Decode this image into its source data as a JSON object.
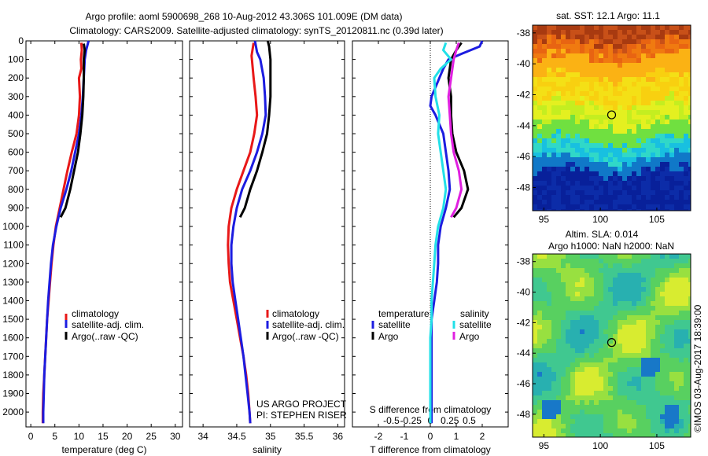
{
  "header": {
    "line1": "Argo profile: aoml 5900698_268 10-Aug-2012 43.306S 101.009E (DM data)",
    "line2": "Climatology: CARS2009. Satellite-adjusted climatology: synTS_20120811.nc (0.39d later)"
  },
  "sst": {
    "title": "sat. SST: 12.1 Argo: 11.1"
  },
  "sla": {
    "title1": "Altim. SLA: 0.014",
    "title2": "Argo h1000: NaN h2000: NaN"
  },
  "side_note": "©IMOS 03-Aug-2017 18:39:00",
  "project_note": {
    "line1": "US ARGO PROJECT",
    "line2": "PI: STEPHEN RISER"
  },
  "colors": {
    "climatology": "#e81818",
    "satellite": "#1c1ce0",
    "argo": "#000000",
    "sal_satellite": "#22e0e8",
    "sal_argo": "#e020e0"
  },
  "chart_data": [
    {
      "type": "line",
      "xlabel": "temperature (deg C)",
      "ylabel": "",
      "xlim": [
        -1,
        31.5
      ],
      "ylim": [
        2080,
        0
      ],
      "xticks": [
        0,
        5,
        10,
        15,
        20,
        25,
        30
      ],
      "yticks": [
        0,
        100,
        200,
        300,
        400,
        500,
        600,
        700,
        800,
        900,
        1000,
        1100,
        1200,
        1300,
        1400,
        1500,
        1600,
        1700,
        1800,
        1900,
        2000
      ],
      "legend": [
        "climatology",
        "satellite-adj. clim.",
        "Argo(..raw -QC)"
      ],
      "series": [
        {
          "name": "climatology",
          "color": "#e81818",
          "points": [
            [
              10.5,
              10
            ],
            [
              10.6,
              50
            ],
            [
              10.4,
              100
            ],
            [
              10.5,
              150
            ],
            [
              10.0,
              200
            ],
            [
              10.2,
              300
            ],
            [
              10.0,
              400
            ],
            [
              9.5,
              500
            ],
            [
              8.5,
              600
            ],
            [
              7.6,
              700
            ],
            [
              6.8,
              800
            ],
            [
              6.0,
              900
            ],
            [
              5.2,
              1000
            ],
            [
              4.7,
              1100
            ],
            [
              4.3,
              1200
            ],
            [
              4.0,
              1300
            ],
            [
              3.7,
              1400
            ],
            [
              3.4,
              1500
            ],
            [
              3.2,
              1600
            ],
            [
              3.0,
              1700
            ],
            [
              2.8,
              1800
            ],
            [
              2.6,
              1900
            ],
            [
              2.5,
              2000
            ],
            [
              2.5,
              2060
            ]
          ]
        },
        {
          "name": "satellite-adj. clim.",
          "color": "#1c1ce0",
          "points": [
            [
              12.0,
              0
            ],
            [
              11.5,
              50
            ],
            [
              11.2,
              100
            ],
            [
              11.1,
              150
            ],
            [
              11.0,
              200
            ],
            [
              10.8,
              300
            ],
            [
              10.5,
              400
            ],
            [
              10.0,
              500
            ],
            [
              9.2,
              600
            ],
            [
              8.4,
              700
            ],
            [
              7.4,
              800
            ],
            [
              6.2,
              900
            ],
            [
              5.3,
              1000
            ],
            [
              4.6,
              1100
            ],
            [
              4.2,
              1200
            ],
            [
              3.9,
              1300
            ],
            [
              3.6,
              1400
            ],
            [
              3.4,
              1500
            ],
            [
              3.2,
              1600
            ],
            [
              3.0,
              1700
            ],
            [
              2.8,
              1800
            ],
            [
              2.7,
              1900
            ],
            [
              2.6,
              2000
            ],
            [
              2.6,
              2060
            ]
          ]
        },
        {
          "name": "Argo(..raw -QC)",
          "color": "#000000",
          "points": [
            [
              11.0,
              15
            ],
            [
              11.2,
              50
            ],
            [
              11.0,
              100
            ],
            [
              11.0,
              200
            ],
            [
              10.9,
              300
            ],
            [
              10.7,
              400
            ],
            [
              10.3,
              500
            ],
            [
              9.8,
              600
            ],
            [
              9.0,
              700
            ],
            [
              8.2,
              800
            ],
            [
              7.2,
              900
            ],
            [
              6.2,
              950
            ]
          ]
        }
      ]
    },
    {
      "type": "line",
      "xlabel": "salinity",
      "ylabel": "",
      "xlim": [
        33.8,
        36.1
      ],
      "ylim": [
        2080,
        0
      ],
      "xticks": [
        34,
        34.5,
        35,
        35.5,
        36
      ],
      "legend": [
        "climatology",
        "satellite-adj. clim.",
        "Argo(..raw -QC)"
      ],
      "series": [
        {
          "name": "climatology",
          "color": "#e81818",
          "points": [
            [
              34.75,
              10
            ],
            [
              34.72,
              80
            ],
            [
              34.75,
              200
            ],
            [
              34.78,
              300
            ],
            [
              34.8,
              400
            ],
            [
              34.76,
              500
            ],
            [
              34.7,
              600
            ],
            [
              34.6,
              700
            ],
            [
              34.5,
              800
            ],
            [
              34.42,
              900
            ],
            [
              34.38,
              1000
            ],
            [
              34.37,
              1100
            ],
            [
              34.38,
              1200
            ],
            [
              34.4,
              1300
            ],
            [
              34.45,
              1400
            ],
            [
              34.5,
              1500
            ],
            [
              34.55,
              1600
            ],
            [
              34.6,
              1700
            ],
            [
              34.64,
              1800
            ],
            [
              34.67,
              1900
            ],
            [
              34.69,
              2000
            ],
            [
              34.7,
              2060
            ]
          ]
        },
        {
          "name": "satellite-adj. clim.",
          "color": "#1c1ce0",
          "points": [
            [
              34.77,
              0
            ],
            [
              34.8,
              60
            ],
            [
              34.85,
              100
            ],
            [
              34.9,
              200
            ],
            [
              34.92,
              300
            ],
            [
              34.93,
              400
            ],
            [
              34.88,
              500
            ],
            [
              34.8,
              600
            ],
            [
              34.7,
              700
            ],
            [
              34.58,
              800
            ],
            [
              34.5,
              900
            ],
            [
              34.45,
              1000
            ],
            [
              34.42,
              1100
            ],
            [
              34.42,
              1200
            ],
            [
              34.44,
              1300
            ],
            [
              34.48,
              1400
            ],
            [
              34.52,
              1500
            ],
            [
              34.56,
              1600
            ],
            [
              34.6,
              1700
            ],
            [
              34.63,
              1800
            ],
            [
              34.66,
              1900
            ],
            [
              34.69,
              2000
            ],
            [
              34.7,
              2060
            ]
          ]
        },
        {
          "name": "Argo(..raw -QC)",
          "color": "#000000",
          "points": [
            [
              34.96,
              0
            ],
            [
              34.98,
              30
            ],
            [
              35.0,
              100
            ],
            [
              35.0,
              200
            ],
            [
              35.0,
              300
            ],
            [
              34.98,
              400
            ],
            [
              34.95,
              500
            ],
            [
              34.88,
              600
            ],
            [
              34.8,
              700
            ],
            [
              34.7,
              800
            ],
            [
              34.62,
              900
            ],
            [
              34.55,
              950
            ]
          ]
        }
      ]
    },
    {
      "type": "line",
      "xlabel": "T difference from climatology",
      "xlabel_top": "S difference from climatology",
      "ylabel": "",
      "xlim": [
        -3.0,
        3.0
      ],
      "ylim": [
        2080,
        0
      ],
      "xticks": [
        -2,
        -1,
        0,
        1,
        2
      ],
      "xticks_top": [
        "-0.5",
        "-0.25",
        "0",
        "0.25",
        "0.5"
      ],
      "legend_titles": [
        "temperature",
        "salinity"
      ],
      "legend": [
        "satellite",
        "Argo",
        "satellite",
        "Argo"
      ],
      "series": [
        {
          "name": "satellite",
          "group": "temperature",
          "color": "#1c1ce0",
          "points": [
            [
              2.0,
              0
            ],
            [
              1.9,
              30
            ],
            [
              1.2,
              70
            ],
            [
              0.7,
              100
            ],
            [
              0.5,
              150
            ],
            [
              0.35,
              200
            ],
            [
              0.2,
              250
            ],
            [
              0.05,
              300
            ],
            [
              0.0,
              350
            ],
            [
              0.2,
              400
            ],
            [
              0.35,
              450
            ],
            [
              0.5,
              500
            ],
            [
              0.6,
              600
            ],
            [
              0.7,
              700
            ],
            [
              0.75,
              800
            ],
            [
              0.6,
              900
            ],
            [
              0.4,
              1000
            ],
            [
              0.3,
              1100
            ],
            [
              0.3,
              1200
            ],
            [
              0.25,
              1300
            ],
            [
              0.15,
              1400
            ],
            [
              0.05,
              1500
            ],
            [
              0.05,
              1600
            ],
            [
              0.05,
              1700
            ],
            [
              0.05,
              1800
            ],
            [
              0.05,
              1900
            ],
            [
              0.05,
              2000
            ],
            [
              0.05,
              2060
            ]
          ]
        },
        {
          "name": "Argo",
          "group": "temperature",
          "color": "#000000",
          "points": [
            [
              1.2,
              10
            ],
            [
              1.0,
              50
            ],
            [
              0.8,
              100
            ],
            [
              0.7,
              200
            ],
            [
              0.8,
              300
            ],
            [
              0.8,
              400
            ],
            [
              0.85,
              500
            ],
            [
              1.0,
              600
            ],
            [
              1.3,
              700
            ],
            [
              1.45,
              800
            ],
            [
              1.2,
              900
            ],
            [
              0.9,
              950
            ]
          ]
        },
        {
          "name": "satellite",
          "group": "salinity",
          "color": "#22e0e8",
          "points": [
            [
              0.6,
              10
            ],
            [
              0.5,
              50
            ],
            [
              0.8,
              100
            ],
            [
              0.4,
              150
            ],
            [
              0.15,
              200
            ],
            [
              0.2,
              300
            ],
            [
              0.35,
              400
            ],
            [
              0.3,
              500
            ],
            [
              0.4,
              600
            ],
            [
              0.5,
              700
            ],
            [
              0.6,
              800
            ],
            [
              0.5,
              900
            ],
            [
              0.3,
              1000
            ],
            [
              0.2,
              1100
            ],
            [
              0.15,
              1200
            ],
            [
              0.1,
              1300
            ],
            [
              0.05,
              1400
            ],
            [
              0.05,
              1500
            ],
            [
              0.0,
              1600
            ],
            [
              0.0,
              1700
            ],
            [
              0.0,
              1800
            ],
            [
              0.0,
              1900
            ],
            [
              0.0,
              2000
            ],
            [
              0.0,
              2060
            ]
          ]
        },
        {
          "name": "Argo",
          "group": "salinity",
          "color": "#e020e0",
          "points": [
            [
              1.1,
              10
            ],
            [
              1.0,
              50
            ],
            [
              0.9,
              100
            ],
            [
              0.8,
              200
            ],
            [
              0.7,
              300
            ],
            [
              0.75,
              400
            ],
            [
              0.8,
              500
            ],
            [
              0.9,
              600
            ],
            [
              1.1,
              700
            ],
            [
              1.2,
              800
            ],
            [
              1.0,
              900
            ],
            [
              0.8,
              950
            ]
          ]
        }
      ]
    },
    {
      "type": "heatmap",
      "title": "sat. SST: 12.1 Argo: 11.1",
      "xlim": [
        94,
        108
      ],
      "ylim": [
        -49.5,
        -37.5
      ],
      "xticks": [
        95,
        100,
        105
      ],
      "yticks": [
        -38,
        -40,
        -42,
        -44,
        -46,
        -48
      ],
      "marker": {
        "lon": 101.0,
        "lat": -43.3
      }
    },
    {
      "type": "heatmap",
      "title": "Altim. SLA: 0.014",
      "xlim": [
        94,
        108
      ],
      "ylim": [
        -49.5,
        -37.5
      ],
      "xticks": [
        95,
        100,
        105
      ],
      "yticks": [
        -38,
        -40,
        -42,
        -44,
        -46,
        -48
      ],
      "marker": {
        "lon": 101.0,
        "lat": -43.3
      }
    }
  ]
}
